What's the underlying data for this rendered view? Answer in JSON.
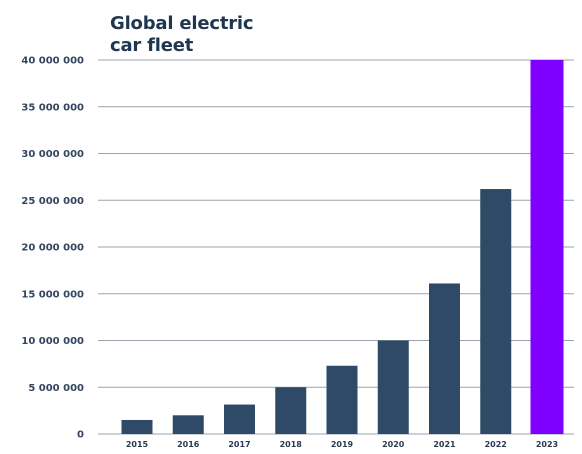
{
  "chart_data": {
    "type": "bar",
    "title_lines": [
      "Global electric",
      "car fleet"
    ],
    "categories": [
      "2015",
      "2016",
      "2017",
      "2018",
      "2019",
      "2020",
      "2021",
      "2022",
      "2023"
    ],
    "values": [
      1500000,
      2000000,
      3150000,
      5000000,
      7300000,
      10000000,
      16100000,
      26200000,
      40000000
    ],
    "y_ticks": [
      0,
      5000000,
      10000000,
      15000000,
      20000000,
      25000000,
      30000000,
      35000000,
      40000000
    ],
    "y_tick_labels": [
      "0",
      "5 000 000",
      "10 000 000",
      "15 000 000",
      "20 000 000",
      "25 000 000",
      "30 000 000",
      "35 000 000",
      "40 000 000"
    ],
    "ylim": [
      0,
      40000000
    ],
    "grid": true,
    "colors": {
      "bar": "#2f4a67",
      "highlight": "#8000ff",
      "grid": "#9aa3ad",
      "title": "#1f3650"
    },
    "highlight_category": "2023"
  }
}
